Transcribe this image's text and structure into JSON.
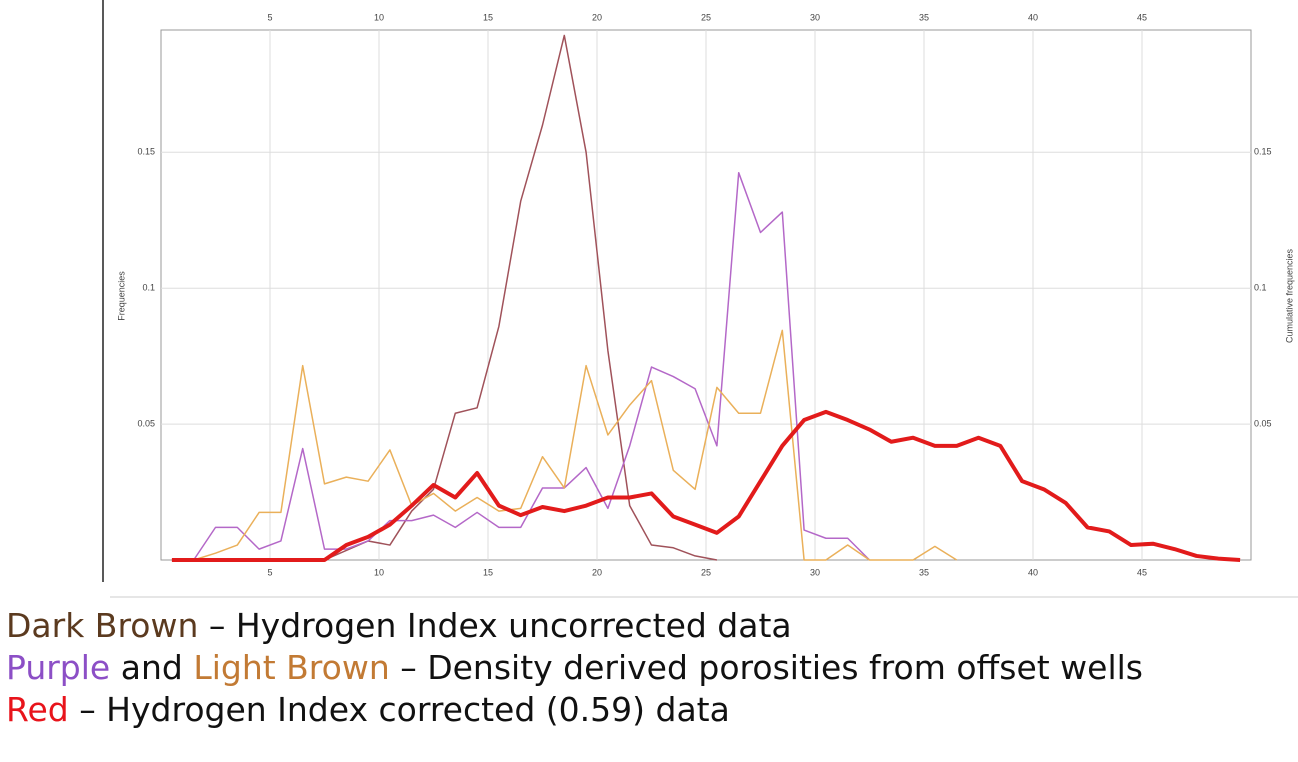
{
  "chart_data": {
    "type": "line",
    "y_label": "Frequencies",
    "y2_label": "Cumulative frequencies",
    "x": [
      0.5,
      1.5,
      2.5,
      3.5,
      4.5,
      5.5,
      6.5,
      7.5,
      8.5,
      9.5,
      10.5,
      11.5,
      12.5,
      13.5,
      14.5,
      15.5,
      16.5,
      17.5,
      18.5,
      19.5,
      20.5,
      21.5,
      22.5,
      23.5,
      24.5,
      25.5,
      26.5,
      27.5,
      28.5,
      29.5,
      30.5,
      31.5,
      32.5,
      33.5,
      34.5,
      35.5,
      36.5,
      37.5,
      38.5,
      39.5,
      40.5,
      41.5,
      42.5,
      43.5,
      44.5,
      45.5,
      46.5,
      47.5,
      48.5,
      49.5
    ],
    "series": [
      {
        "name": "Dark Brown",
        "color": "#a0525a",
        "width": 1.5,
        "values": [
          0,
          0,
          0,
          0,
          0,
          0,
          0,
          0,
          0.0035,
          0.007,
          0.0055,
          0.018,
          0.026,
          0.054,
          0.056,
          0.086,
          0.132,
          0.16,
          0.193,
          0.15,
          0.077,
          0.02,
          0.0055,
          0.0045,
          0.0015,
          0,
          null,
          null,
          null,
          null,
          null,
          null,
          null,
          null,
          null,
          null,
          null,
          null,
          null,
          null,
          null,
          null,
          null,
          null,
          null,
          null,
          null,
          null,
          null,
          null
        ]
      },
      {
        "name": "Purple",
        "color": "#b468c8",
        "width": 1.5,
        "values": [
          0,
          0,
          0.012,
          0.012,
          0.004,
          0.007,
          0.041,
          0.004,
          0.004,
          0.007,
          0.0145,
          0.0145,
          0.0165,
          0.012,
          0.0175,
          0.012,
          0.012,
          0.0265,
          0.0265,
          0.034,
          0.019,
          0.042,
          0.071,
          0.0675,
          0.063,
          0.042,
          0.1425,
          0.1205,
          0.128,
          0.011,
          0.008,
          0.008,
          0,
          null,
          null,
          null,
          null,
          null,
          null,
          null,
          null,
          null,
          null,
          null,
          null,
          null,
          null,
          null,
          null,
          null
        ]
      },
      {
        "name": "Light Brown",
        "color": "#eab05a",
        "width": 1.5,
        "values": [
          0,
          0,
          0.0025,
          0.0055,
          0.0175,
          0.0175,
          0.0715,
          0.028,
          0.0305,
          0.029,
          0.0405,
          0.02,
          0.0245,
          0.018,
          0.023,
          0.018,
          0.019,
          0.038,
          0.0265,
          0.0715,
          0.046,
          0.057,
          0.066,
          0.033,
          0.026,
          0.0635,
          0.054,
          0.054,
          0.0845,
          0,
          0,
          0.0055,
          0,
          0,
          0,
          0.005,
          0,
          null,
          null,
          null,
          null,
          null,
          null,
          null,
          null,
          null,
          null,
          null,
          null,
          null
        ]
      },
      {
        "name": "Red",
        "color": "#e21b1b",
        "width": 4,
        "values": [
          0,
          0,
          0,
          0,
          0,
          0,
          0,
          0,
          0.0055,
          0.0085,
          0.013,
          0.02,
          0.0276,
          0.023,
          0.032,
          0.02,
          0.0165,
          0.0195,
          0.018,
          0.02,
          0.023,
          0.023,
          0.0245,
          0.016,
          0.013,
          0.01,
          0.016,
          0.029,
          0.042,
          0.0515,
          0.0545,
          0.0515,
          0.048,
          0.0435,
          0.045,
          0.042,
          0.042,
          0.045,
          0.042,
          0.029,
          0.026,
          0.021,
          0.012,
          0.0105,
          0.0055,
          0.006,
          0.004,
          0.0015,
          0.0005,
          0
        ]
      }
    ],
    "xlim": [
      0,
      50
    ],
    "xticks": [
      5,
      10,
      15,
      20,
      25,
      30,
      35,
      40,
      45
    ],
    "ylim": [
      0,
      0.195
    ],
    "yticks": [
      0.05,
      0.1,
      0.15
    ],
    "y2lim": [
      0,
      0.195
    ],
    "y2ticks": [
      0.05,
      0.1,
      0.15
    ],
    "grid": true
  },
  "notes": [
    [
      {
        "text": "Dark Brown",
        "color": "#5b3a1f"
      },
      {
        "text": " – Hydrogen Index uncorrected data",
        "color": "#111111"
      }
    ],
    [
      {
        "text": "Purple",
        "color": "#8c4fc6"
      },
      {
        "text": " and ",
        "color": "#111111"
      },
      {
        "text": "Light Brown",
        "color": "#c27a34"
      },
      {
        "text": " – Density derived porosities from offset wells",
        "color": "#111111"
      }
    ],
    [
      {
        "text": "Red",
        "color": "#e8141b"
      },
      {
        "text": " – Hydrogen Index corrected (0.59) data",
        "color": "#111111"
      }
    ]
  ]
}
